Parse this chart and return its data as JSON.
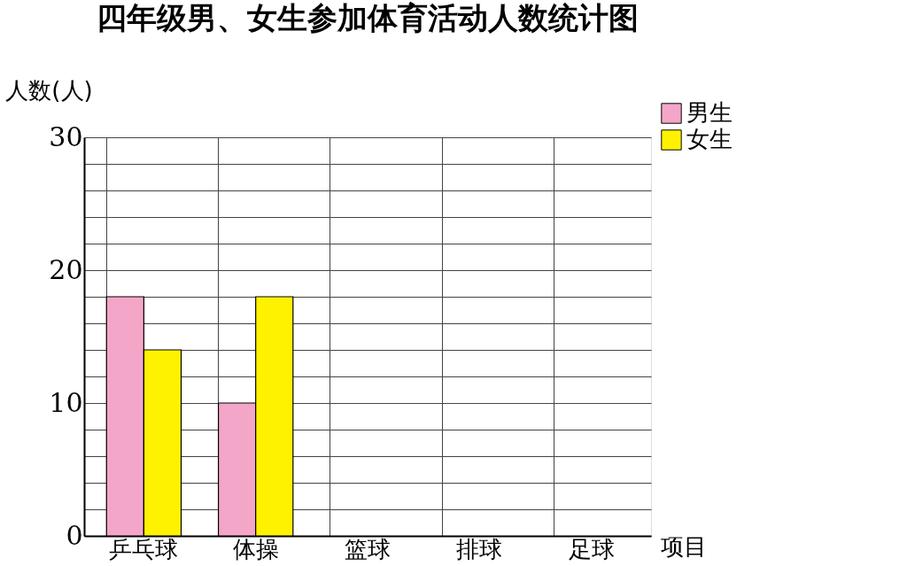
{
  "chart_data": {
    "type": "bar",
    "title": "四年级男、女生参加体育活动人数统计图",
    "xlabel": "项目",
    "ylabel": "人数(人)",
    "categories": [
      "乒乓球",
      "体操",
      "篮球",
      "排球",
      "足球"
    ],
    "series": [
      {
        "name": "男生",
        "color": "#f4a6c8",
        "values": [
          18,
          10,
          null,
          null,
          null
        ]
      },
      {
        "name": "女生",
        "color": "#fff200",
        "values": [
          14,
          18,
          null,
          null,
          null
        ]
      }
    ],
    "ylim": [
      0,
      30
    ],
    "yticks": [
      0,
      {
        "value": 2,
        "label": null
      },
      {
        "value": 4,
        "label": null
      },
      {
        "value": 6,
        "label": null
      },
      {
        "value": 8,
        "label": null
      },
      10,
      {
        "value": 12,
        "label": null
      },
      {
        "value": 14,
        "label": null
      },
      {
        "value": 16,
        "label": null
      },
      {
        "value": 18,
        "label": null
      },
      20,
      {
        "value": 22,
        "label": null
      },
      {
        "value": 24,
        "label": null
      },
      {
        "value": 26,
        "label": null
      },
      {
        "value": 28,
        "label": null
      },
      30
    ],
    "grid": true,
    "legend": "top right"
  }
}
